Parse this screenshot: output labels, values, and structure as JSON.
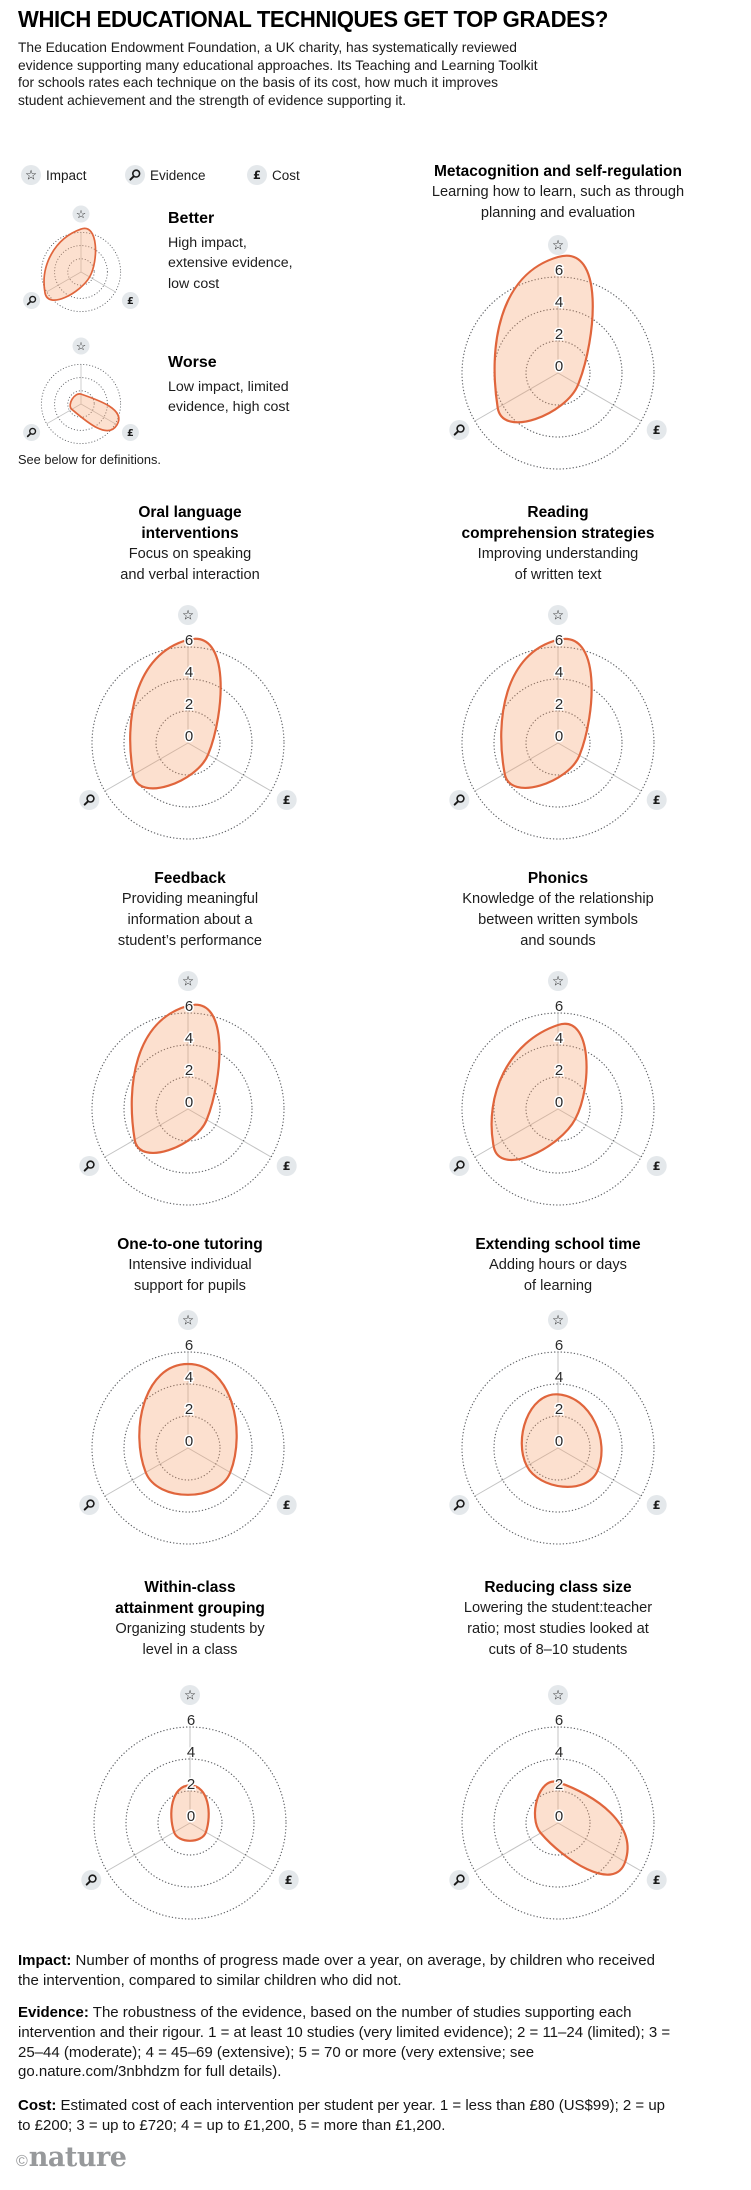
{
  "style": {
    "accent_stroke": "#E0653C",
    "accent_fill": "#F5A06A",
    "icon_circle_bg": "#E4E8EB",
    "logo_gray": "#97999B"
  },
  "header": {
    "title": "WHICH EDUCATIONAL TECHNIQUES GET TOP GRADES?",
    "intro": "The Education Endowment Foundation, a UK charity, has systematically reviewed evidence supporting many educational approaches. Its Teaching and Learning Toolkit for schools rates each technique on the basis of its cost, how much it improves student achievement and the strength of evidence supporting it."
  },
  "legend": {
    "items": [
      {
        "icon": "star-icon",
        "label": "Impact"
      },
      {
        "icon": "magnifier-icon",
        "label": "Evidence"
      },
      {
        "icon": "pound-icon",
        "label": "Cost"
      }
    ]
  },
  "examples_note": "See below for definitions.",
  "chart_data": {
    "type": "radar",
    "axes": [
      "Impact",
      "Evidence",
      "Cost"
    ],
    "scale": {
      "min": 0,
      "max": 6,
      "rings": [
        2,
        4,
        6
      ],
      "tick_labels": [
        "0",
        "2",
        "4",
        "6"
      ],
      "grid": "dotted circles, ticks on impact axis only"
    },
    "examples": [
      {
        "name": "Better",
        "description": "High impact,\nextensive evidence,\nlow cost",
        "values": {
          "impact": 6.2,
          "evidence": 6.0,
          "cost": 1.2
        }
      },
      {
        "name": "Worse",
        "description": "Low impact, limited\nevidence, high cost",
        "values": {
          "impact": 1.2,
          "evidence": 1.3,
          "cost": 6.0
        }
      }
    ],
    "techniques": [
      {
        "title": "Metacognition and self-regulation",
        "subtitle": "Learning how to learn, such as through\nplanning and evaluation",
        "values": {
          "impact": 7.0,
          "evidence": 4.1,
          "cost": 1.2
        }
      },
      {
        "title": "Oral language\ninterventions",
        "subtitle": "Focus on speaking\nand verbal interaction",
        "values": {
          "impact": 6.2,
          "evidence": 3.7,
          "cost": 1.2
        }
      },
      {
        "title": "Reading\ncomprehension strategies",
        "subtitle": "Improving understanding\nof written text",
        "values": {
          "impact": 6.2,
          "evidence": 3.6,
          "cost": 1.3
        }
      },
      {
        "title": "Feedback",
        "subtitle": "Providing meaningful\ninformation about a\nstudent’s performance",
        "values": {
          "impact": 6.2,
          "evidence": 3.6,
          "cost": 1.1
        }
      },
      {
        "title": "Phonics",
        "subtitle": "Knowledge of the relationship\nbetween written symbols\nand sounds",
        "values": {
          "impact": 5.0,
          "evidence": 4.4,
          "cost": 1.0
        }
      },
      {
        "title": "One-to-one tutoring",
        "subtitle": "Intensive individual\nsupport for pupils",
        "values": {
          "impact": 5.0,
          "evidence": 2.8,
          "cost": 2.8
        }
      },
      {
        "title": "Extending school time",
        "subtitle": "Adding hours or days\nof learning",
        "values": {
          "impact": 3.1,
          "evidence": 2.0,
          "cost": 2.6
        }
      },
      {
        "title": "Within-class\nattainment grouping",
        "subtitle": "Organizing students by\nlevel in a class",
        "values": {
          "impact": 2.1,
          "evidence": 0.9,
          "cost": 0.9
        }
      },
      {
        "title": "Reducing class size",
        "subtitle": "Lowering the student:teacher\nratio; most studies looked at\ncuts of 8–10 students",
        "values": {
          "impact": 2.3,
          "evidence": 1.0,
          "cost": 4.6
        }
      }
    ]
  },
  "footnotes": {
    "impact": {
      "label": "Impact:",
      "text": "Number of months of progress made over a year, on average, by children who received the intervention, compared to similar children who did not."
    },
    "evidence": {
      "label": "Evidence:",
      "text": "The robustness of the evidence, based on the number of studies supporting each intervention and their rigour. 1 = at least 10 studies (very limited evidence); 2 = 11–24 (limited); 3 = 25–44 (moderate); 4 = 45–69 (extensive); 5 = 70 or more (very extensive; see go.nature.com/3nbhdzm for full details)."
    },
    "cost": {
      "label": "Cost:",
      "text": "Estimated cost of each intervention per student per year. 1 = less than £80 (US$99); 2 = up to £200; 3 = up to £720; 4 = up to £1,200, 5 = more than £1,200."
    }
  },
  "footer": {
    "logo_symbol": "©",
    "logo_name": "nature"
  }
}
